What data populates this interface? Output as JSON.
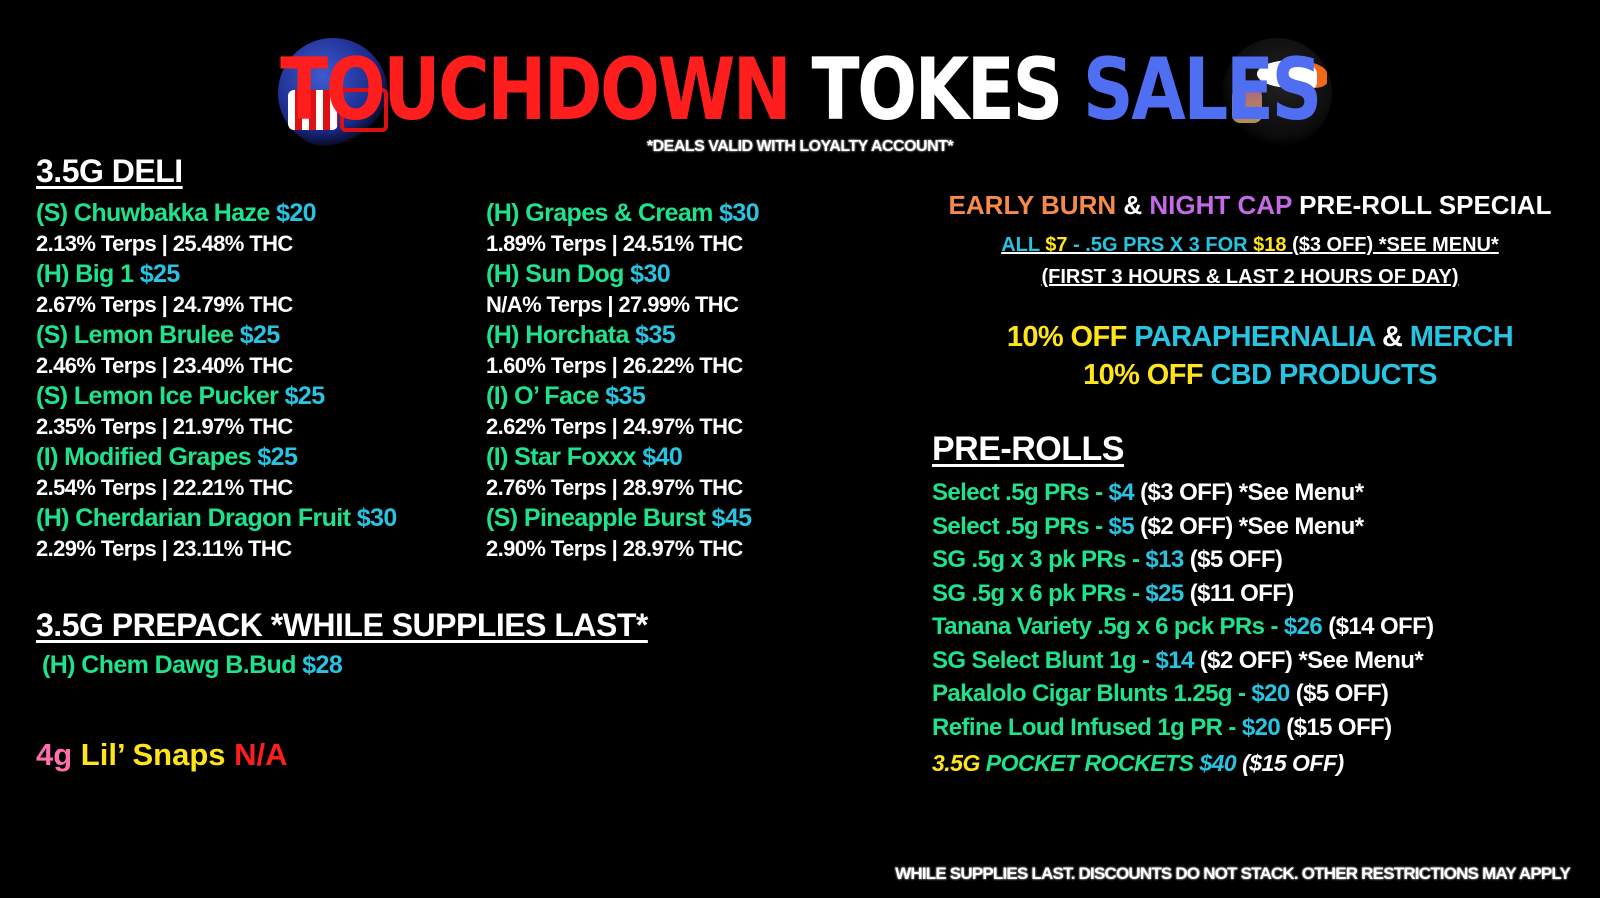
{
  "colors": {
    "green": "#1ee38c",
    "cyan": "#27c4e2",
    "white": "#ffffff",
    "yellow": "#ffe41a",
    "red": "#ff1e1e",
    "blue": "#4f6ef2",
    "orange": "#f58a4a",
    "purple": "#c56ae6",
    "pink": "#ff6fae"
  },
  "title": [
    {
      "text": "TOUCHDOWN ",
      "color": "#ff1e1e"
    },
    {
      "text": "TOKES ",
      "color": "#ffffff"
    },
    {
      "text": "SALES",
      "color": "#4f6ef2"
    }
  ],
  "subtitle": "*DEALS VALID WITH LOYALTY ACCOUNT*",
  "logos": {
    "left": "patriots-helmet",
    "right": "broncos-helmet"
  },
  "deli": {
    "header": "3.5G DELI",
    "col1": [
      {
        "name": "(S) Chuwbakka Haze ",
        "price": "$20",
        "spec": "2.13% Terps | 25.48% THC"
      },
      {
        "name": "(H) Big 1 ",
        "price": "$25",
        "spec": "2.67% Terps | 24.79% THC"
      },
      {
        "name": "(S) Lemon Brulee ",
        "price": "$25",
        "spec": "2.46% Terps | 23.40% THC"
      },
      {
        "name": "(S) Lemon Ice Pucker ",
        "price": "$25",
        "spec": "2.35% Terps | 21.97% THC"
      },
      {
        "name": "(I) Modified Grapes ",
        "price": "$25",
        "spec": "2.54% Terps | 22.21% THC"
      },
      {
        "name": "(H) Cherdarian Dragon Fruit ",
        "price": "$30",
        "spec": "2.29% Terps | 23.11% THC"
      }
    ],
    "col2": [
      {
        "name": "(H) Grapes & Cream ",
        "price": "$30",
        "spec": "1.89% Terps | 24.51% THC"
      },
      {
        "name": "(H) Sun Dog ",
        "price": "$30",
        "spec": "N/A% Terps | 27.99% THC"
      },
      {
        "name": "(H) Horchata ",
        "price": "$35",
        "spec": "1.60% Terps | 26.22% THC"
      },
      {
        "name": "(I) O’ Face ",
        "price": "$35",
        "spec": "2.62% Terps | 24.97% THC"
      },
      {
        "name": "(I) Star Foxxx ",
        "price": "$40",
        "spec": "2.76% Terps | 28.97% THC"
      },
      {
        "name": "(S) Pineapple Burst ",
        "price": "$45",
        "spec": "2.90%  Terps | 28.97% THC"
      }
    ]
  },
  "prepack": {
    "header": "3.5G PREPACK *WHILE SUPPLIES LAST*",
    "items": [
      {
        "name": "(H) Chem Dawg   B.Bud ",
        "price": "$28"
      }
    ]
  },
  "snaps": [
    {
      "text": "4g ",
      "color": "#ff6fae"
    },
    {
      "text": "Lil’ Snaps ",
      "color": "#ffe41a"
    },
    {
      "text": "N/A",
      "color": "#ff1e1e"
    }
  ],
  "special": {
    "header": [
      {
        "text": "EARLY BURN",
        "color": "#f58a4a"
      },
      {
        "text": " & ",
        "color": "#ffffff"
      },
      {
        "text": "NIGHT CAP",
        "color": "#c56ae6"
      },
      {
        "text": " PRE-ROLL SPECIAL",
        "color": "#ffffff"
      }
    ],
    "line1": [
      {
        "text": "ALL ",
        "color": "#27c4e2"
      },
      {
        "text": "$7",
        "color": "#ffe41a"
      },
      {
        "text": " - .5G PRS X 3 FOR ",
        "color": "#27c4e2"
      },
      {
        "text": "$18",
        "color": "#ffe41a"
      },
      {
        "text": " ($3 OFF) *SEE MENU*",
        "color": "#ffffff"
      }
    ],
    "line2": [
      {
        "text": "(FIRST 3 HOURS & LAST 2 HOURS OF DAY)",
        "color": "#ffffff"
      }
    ]
  },
  "discounts": [
    [
      {
        "text": "10% OFF  ",
        "color": "#ffe41a"
      },
      {
        "text": "PARAPHERNALIA",
        "color": "#27c4e2"
      },
      {
        "text": " & ",
        "color": "#ffffff"
      },
      {
        "text": "MERCH",
        "color": "#27c4e2"
      }
    ],
    [
      {
        "text": "10% OFF  ",
        "color": "#ffe41a"
      },
      {
        "text": "CBD PRODUCTS",
        "color": "#27c4e2"
      }
    ]
  ],
  "prerolls": {
    "header": "PRE-ROLLS",
    "items": [
      {
        "name": "Select  .5g PRs - ",
        "price": "$4",
        "note": " ($3 OFF) *See Menu*"
      },
      {
        "name": "Select  .5g PRs - ",
        "price": "$5",
        "note": " ($2 OFF) *See Menu*"
      },
      {
        "name": "SG  .5g  x 3 pk PRs - ",
        "price": "$13",
        "note": " ($5 OFF)"
      },
      {
        "name": "SG  .5g x 6 pk PRs - ",
        "price": "$25",
        "note": " ($11 OFF)"
      },
      {
        "name": "Tanana   Variety .5g x 6 pck PRs - ",
        "price": "$26",
        "note": " ($14 OFF)"
      },
      {
        "name": "SG  Select  Blunt  1g - ",
        "price": "$14",
        "note": " ($2 OFF) *See Menu*"
      },
      {
        "name": "Pakalolo  Cigar Blunts 1.25g - ",
        "price": "$20",
        "note": " ($5 OFF)"
      },
      {
        "name": "Refine  Loud Infused 1g PR - ",
        "price": "$20",
        "note": " ($15 OFF)"
      }
    ],
    "rockets": [
      {
        "text": "3.5G ",
        "color": "#ffe41a"
      },
      {
        "text": "POCKET ROCKETS ",
        "color": "#1ee38c"
      },
      {
        "text": "$40",
        "color": "#27c4e2"
      },
      {
        "text": " ($15 OFF)",
        "color": "#ffffff"
      }
    ]
  },
  "footer": "WHILE SUPPLIES LAST. DISCOUNTS DO NOT STACK. OTHER RESTRICTIONS MAY APPLY"
}
